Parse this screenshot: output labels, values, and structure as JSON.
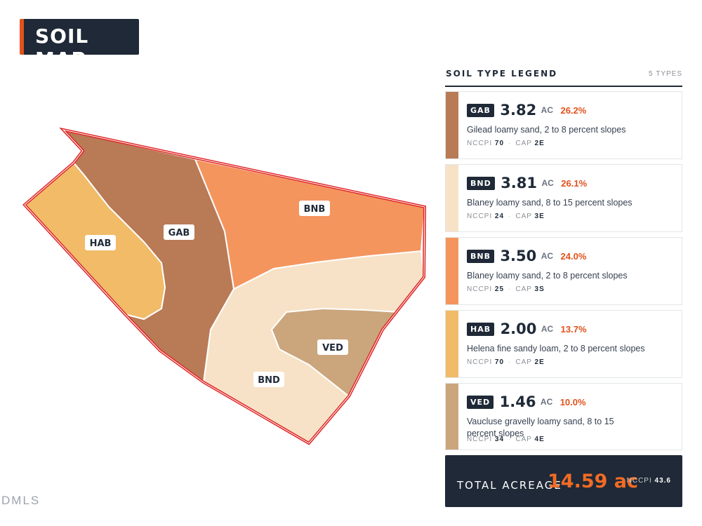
{
  "title": "SOIL MAP",
  "legend": {
    "title": "SOIL TYPE LEGEND",
    "count": "5 TYPES",
    "items": [
      {
        "code": "GAB",
        "acres": "3.82",
        "unit": "AC",
        "percent": "26.2%",
        "description": "Gilead loamy sand, 2 to 8 percent slopes",
        "nccpi_label": "NCCPI",
        "nccpi": "70",
        "cap_label": "CAP",
        "cap": "2E",
        "color": "#b97a56"
      },
      {
        "code": "BND",
        "acres": "3.81",
        "unit": "AC",
        "percent": "26.1%",
        "description": "Blaney loamy sand, 8 to 15 percent slopes",
        "nccpi_label": "NCCPI",
        "nccpi": "24",
        "cap_label": "CAP",
        "cap": "3E",
        "color": "#f7e2c7"
      },
      {
        "code": "BNB",
        "acres": "3.50",
        "unit": "AC",
        "percent": "24.0%",
        "description": "Blaney loamy sand, 2 to 8 percent slopes",
        "nccpi_label": "NCCPI",
        "nccpi": "25",
        "cap_label": "CAP",
        "cap": "3S",
        "color": "#f4955e"
      },
      {
        "code": "HAB",
        "acres": "2.00",
        "unit": "AC",
        "percent": "13.7%",
        "description": "Helena fine sandy loam, 2 to 8 percent slopes",
        "nccpi_label": "NCCPI",
        "nccpi": "70",
        "cap_label": "CAP",
        "cap": "2E",
        "color": "#f1bb68"
      },
      {
        "code": "VED",
        "acres": "1.46",
        "unit": "AC",
        "percent": "10.0%",
        "description": "Vaucluse gravelly loamy sand, 8 to 15 percent slopes",
        "nccpi_label": "NCCPI",
        "nccpi": "34",
        "cap_label": "CAP",
        "cap": "4E",
        "color": "#cba57c"
      }
    ]
  },
  "map_labels": {
    "hab": "HAB",
    "gab": "GAB",
    "bnb": "BNB",
    "ved": "VED",
    "bnd": "BND"
  },
  "total": {
    "label": "TOTAL ACREAGE",
    "value": "14.59 ac",
    "nccpi_label": "NCCPI",
    "nccpi": "43.6"
  },
  "watermark": "DMLS",
  "boundary_color": "#e02424"
}
